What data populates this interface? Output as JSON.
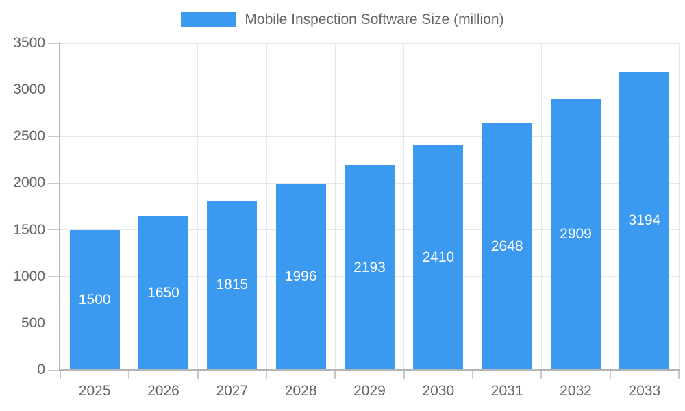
{
  "chart_data": {
    "type": "bar",
    "title": "Mobile Inspection Software Size (million)",
    "legend_position": "top",
    "grid": true,
    "categories": [
      "2025",
      "2026",
      "2027",
      "2028",
      "2029",
      "2030",
      "2031",
      "2032",
      "2033"
    ],
    "values": [
      1500,
      1650,
      1815,
      1996,
      2193,
      2410,
      2648,
      2909,
      3194
    ],
    "value_labels": [
      "1500",
      "1650",
      "1815",
      "1996",
      "2193",
      "2410",
      "2648",
      "2909",
      "3194"
    ],
    "ylim": [
      0,
      3500
    ],
    "y_tick_step": 500,
    "y_ticks": [
      0,
      500,
      1000,
      1500,
      2000,
      2500,
      3000,
      3500
    ],
    "y_tick_labels": [
      "0",
      "500",
      "1000",
      "1500",
      "2000",
      "2500",
      "3000",
      "3500"
    ],
    "colors": {
      "bar": "#3B99F0",
      "value_label": "#FFFFFF",
      "axis_text": "#666666",
      "gridline": "#E6E6E6",
      "axis_line": "#B5B5B5"
    }
  }
}
